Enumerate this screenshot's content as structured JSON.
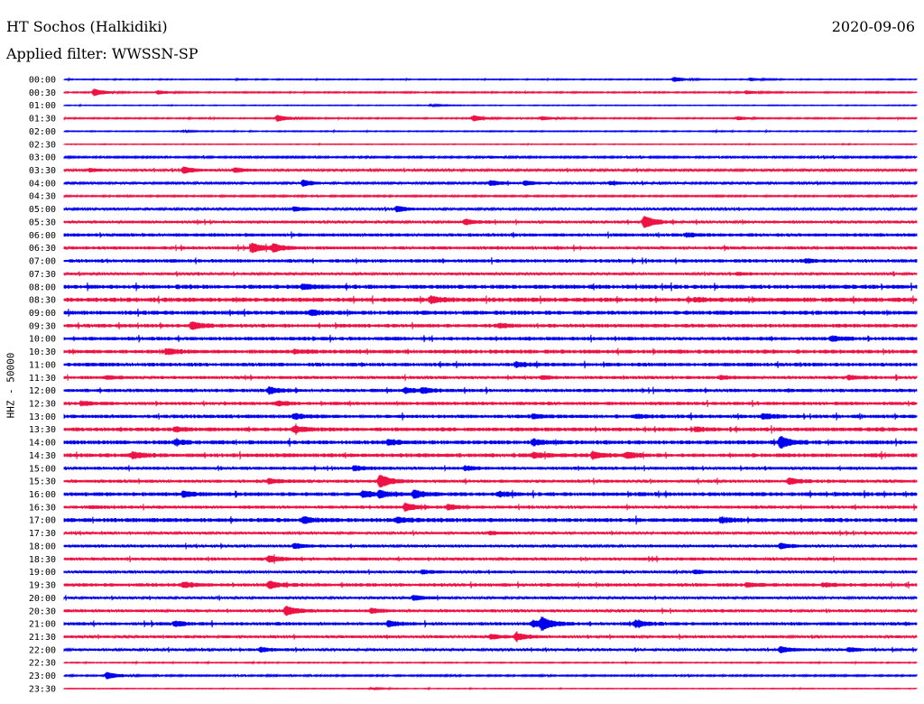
{
  "header": {
    "station": "HT Sochos (Halkidiki)",
    "filter": "Applied filter: WWSSN-SP",
    "date": "2020-09-06"
  },
  "chart_data": {
    "type": "line",
    "ylabel": "HHZ - 50000",
    "row_labels": [
      "00:00",
      "00:30",
      "01:00",
      "01:30",
      "02:00",
      "02:30",
      "03:00",
      "03:30",
      "04:00",
      "04:30",
      "05:00",
      "05:30",
      "06:00",
      "06:30",
      "07:00",
      "07:30",
      "08:00",
      "08:30",
      "09:00",
      "09:30",
      "10:00",
      "10:30",
      "11:00",
      "11:30",
      "12:00",
      "12:30",
      "13:00",
      "13:30",
      "14:00",
      "14:30",
      "15:00",
      "15:30",
      "16:00",
      "16:30",
      "17:00",
      "17:30",
      "18:00",
      "18:30",
      "19:00",
      "19:30",
      "20:00",
      "20:30",
      "21:00",
      "21:30",
      "22:00",
      "22:30",
      "23:00",
      "23:30"
    ],
    "colors": [
      "#0000ee",
      "#ee1144"
    ],
    "noise_levels": [
      0.4,
      0.5,
      0.3,
      0.5,
      0.4,
      0.3,
      0.7,
      0.9,
      0.8,
      0.6,
      0.9,
      1.1,
      1.3,
      1.2,
      1.3,
      1.0,
      1.6,
      1.7,
      1.6,
      1.4,
      1.4,
      1.5,
      1.4,
      1.2,
      1.3,
      1.3,
      1.4,
      1.5,
      1.6,
      1.5,
      1.2,
      1.2,
      1.5,
      1.2,
      1.6,
      1.0,
      1.1,
      1.2,
      1.1,
      1.3,
      1.0,
      1.1,
      1.3,
      1.1,
      1.0,
      0.4,
      0.6,
      0.3
    ],
    "events": [
      [
        [
          0.715,
          2.5
        ],
        [
          0.805,
          1.5
        ]
      ],
      [
        [
          0.035,
          3.5
        ],
        [
          0.11,
          1.8
        ],
        [
          0.8,
          1.6
        ]
      ],
      [
        [
          0.43,
          0.9
        ]
      ],
      [
        [
          0.25,
          3.2
        ],
        [
          0.48,
          3.0
        ],
        [
          0.56,
          1.8
        ],
        [
          0.79,
          1.7
        ]
      ],
      [
        [
          0.14,
          0.6
        ]
      ],
      [],
      [
        [
          0.5,
          0.8
        ]
      ],
      [
        [
          0.03,
          1.5
        ],
        [
          0.14,
          3.2
        ],
        [
          0.2,
          2.3
        ]
      ],
      [
        [
          0.28,
          3.0
        ],
        [
          0.5,
          2.6
        ],
        [
          0.54,
          2.2
        ],
        [
          0.64,
          1.5
        ]
      ],
      [],
      [
        [
          0.27,
          2.0
        ],
        [
          0.39,
          2.8
        ]
      ],
      [
        [
          0.47,
          2.5
        ],
        [
          0.68,
          6.0
        ]
      ],
      [
        [
          0.73,
          1.5
        ]
      ],
      [
        [
          0.22,
          4.5
        ],
        [
          0.245,
          3.5
        ]
      ],
      [
        [
          0.87,
          1.8
        ]
      ],
      [
        [
          0.79,
          1.3
        ]
      ],
      [
        [
          0.28,
          2.2
        ]
      ],
      [
        [
          0.43,
          3.0
        ],
        [
          0.74,
          1.6
        ]
      ],
      [
        [
          0.29,
          1.8
        ]
      ],
      [
        [
          0.15,
          3.2
        ],
        [
          0.51,
          1.8
        ]
      ],
      [
        [
          0.9,
          2.2
        ]
      ],
      [
        [
          0.12,
          2.4
        ],
        [
          0.27,
          1.6
        ]
      ],
      [
        [
          0.53,
          2.0
        ]
      ],
      [
        [
          0.05,
          1.5
        ],
        [
          0.56,
          1.8
        ],
        [
          0.77,
          1.4
        ],
        [
          0.92,
          1.7
        ]
      ],
      [
        [
          0.24,
          3.0
        ],
        [
          0.4,
          2.2
        ],
        [
          0.42,
          2.0
        ]
      ],
      [
        [
          0.02,
          1.6
        ],
        [
          0.25,
          2.0
        ]
      ],
      [
        [
          0.27,
          2.2
        ],
        [
          0.55,
          1.6
        ],
        [
          0.67,
          1.5
        ],
        [
          0.82,
          2.2
        ]
      ],
      [
        [
          0.27,
          2.6
        ],
        [
          0.13,
          1.8
        ],
        [
          0.74,
          1.6
        ]
      ],
      [
        [
          0.13,
          1.8
        ],
        [
          0.38,
          2.4
        ],
        [
          0.55,
          2.4
        ],
        [
          0.84,
          5.5
        ]
      ],
      [
        [
          0.08,
          3.0
        ],
        [
          0.55,
          2.2
        ],
        [
          0.62,
          3.2
        ],
        [
          0.66,
          2.8
        ]
      ],
      [
        [
          0.34,
          2.0
        ],
        [
          0.47,
          1.8
        ]
      ],
      [
        [
          0.24,
          2.2
        ],
        [
          0.37,
          6.5
        ],
        [
          0.85,
          3.2
        ]
      ],
      [
        [
          0.14,
          2.5
        ],
        [
          0.35,
          3.0
        ],
        [
          0.37,
          2.5
        ],
        [
          0.41,
          3.5
        ],
        [
          0.51,
          2.0
        ]
      ],
      [
        [
          0.4,
          3.8
        ],
        [
          0.45,
          2.5
        ],
        [
          0.03,
          1.2
        ]
      ],
      [
        [
          0.28,
          2.6
        ],
        [
          0.39,
          1.8
        ],
        [
          0.77,
          2.0
        ]
      ],
      [
        [
          0.5,
          1.5
        ]
      ],
      [
        [
          0.27,
          2.4
        ],
        [
          0.84,
          2.4
        ]
      ],
      [
        [
          0.24,
          3.0
        ]
      ],
      [
        [
          0.42,
          1.6
        ],
        [
          0.74,
          1.4
        ]
      ],
      [
        [
          0.14,
          2.6
        ],
        [
          0.24,
          3.4
        ],
        [
          0.8,
          1.6
        ],
        [
          0.89,
          1.5
        ]
      ],
      [
        [
          0.41,
          2.2
        ]
      ],
      [
        [
          0.26,
          4.8
        ],
        [
          0.36,
          2.4
        ]
      ],
      [
        [
          0.13,
          2.2
        ],
        [
          0.38,
          2.6
        ],
        [
          0.55,
          3.0
        ],
        [
          0.56,
          5.2
        ],
        [
          0.67,
          3.0
        ]
      ],
      [
        [
          0.53,
          3.5
        ],
        [
          0.5,
          2.0
        ]
      ],
      [
        [
          0.23,
          2.2
        ],
        [
          0.84,
          3.0
        ],
        [
          0.92,
          2.0
        ]
      ],
      [],
      [
        [
          0.05,
          3.6
        ]
      ],
      [
        [
          0.36,
          0.9
        ]
      ]
    ]
  }
}
